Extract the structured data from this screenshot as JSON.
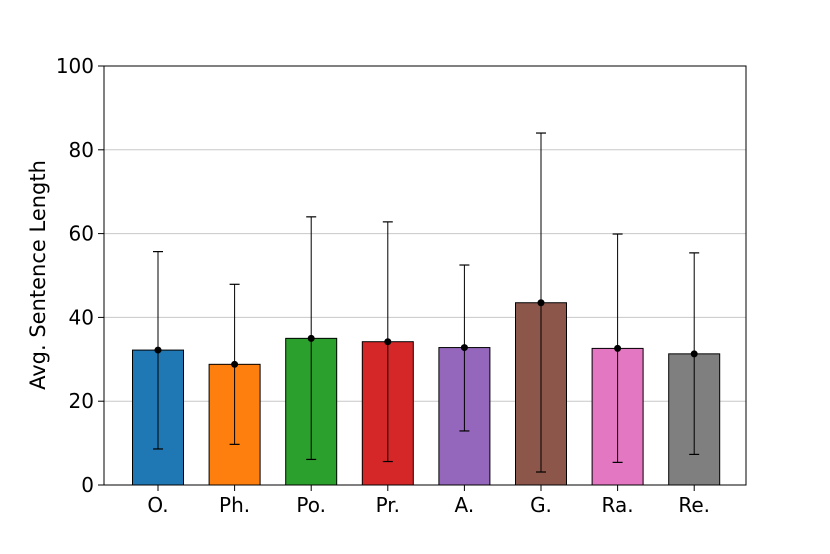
{
  "chart_data": {
    "type": "bar",
    "title": "",
    "xlabel": "",
    "ylabel": "Avg. Sentence Length",
    "ylim": [
      0,
      100
    ],
    "yticks": [
      0,
      20,
      40,
      60,
      80,
      100
    ],
    "grid": "y",
    "categories": [
      "O.",
      "Ph.",
      "Po.",
      "Pr.",
      "A.",
      "G.",
      "Ra.",
      "Re."
    ],
    "values": [
      32.2,
      28.8,
      35.0,
      34.2,
      32.8,
      43.5,
      32.6,
      31.3
    ],
    "error_upper": [
      55.7,
      47.9,
      64.0,
      62.8,
      52.5,
      84.0,
      59.9,
      55.4
    ],
    "error_lower": [
      8.6,
      9.7,
      6.1,
      5.6,
      12.9,
      3.1,
      5.4,
      7.3
    ],
    "colors": [
      "#1f77b4",
      "#ff7f0e",
      "#2ca02c",
      "#d62728",
      "#9467bd",
      "#8c564b",
      "#e377c2",
      "#7f7f7f"
    ]
  }
}
